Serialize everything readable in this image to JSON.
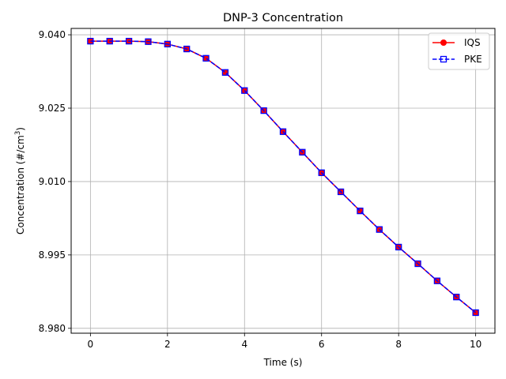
{
  "chart_data": {
    "type": "line",
    "title": "DNP-3 Concentration",
    "xlabel": "Time (s)",
    "ylabel": "Concentration (#/cm",
    "ylabel_superscript": "3",
    "ylabel_suffix": ")",
    "xlim": [
      -0.5,
      10.5
    ],
    "ylim": [
      8.979,
      9.0413
    ],
    "xticks": [
      0,
      2,
      4,
      6,
      8,
      10
    ],
    "xtick_labels": [
      "0",
      "2",
      "4",
      "6",
      "8",
      "10"
    ],
    "yticks": [
      8.98,
      8.995,
      9.01,
      9.025,
      9.04
    ],
    "ytick_labels": [
      "8.980",
      "8.995",
      "9.010",
      "9.025",
      "9.040"
    ],
    "grid": true,
    "legend_position": "top-right",
    "x": [
      0,
      0.5,
      1,
      1.5,
      2,
      2.5,
      3,
      3.5,
      4,
      4.5,
      5,
      5.5,
      6,
      6.5,
      7,
      7.5,
      8,
      8.5,
      9,
      9.5,
      10
    ],
    "series": [
      {
        "name": "IQS",
        "color": "#ff0000",
        "marker": "circle",
        "line_style": "solid",
        "values": [
          9.0387,
          9.0387,
          9.0387,
          9.0386,
          9.0381,
          9.0371,
          9.0352,
          9.0323,
          9.0286,
          9.0245,
          9.0202,
          9.016,
          9.0118,
          9.0079,
          9.004,
          9.0002,
          8.9966,
          8.9932,
          8.9897,
          8.9864,
          8.9832
        ]
      },
      {
        "name": "PKE",
        "color": "#0000ff",
        "marker": "square",
        "line_style": "dashed",
        "values": [
          9.0387,
          9.0387,
          9.0387,
          9.0386,
          9.0381,
          9.0371,
          9.0352,
          9.0323,
          9.0286,
          9.0245,
          9.0202,
          9.016,
          9.0118,
          9.0079,
          9.004,
          9.0002,
          8.9966,
          8.9932,
          8.9897,
          8.9864,
          8.9832
        ]
      }
    ]
  }
}
